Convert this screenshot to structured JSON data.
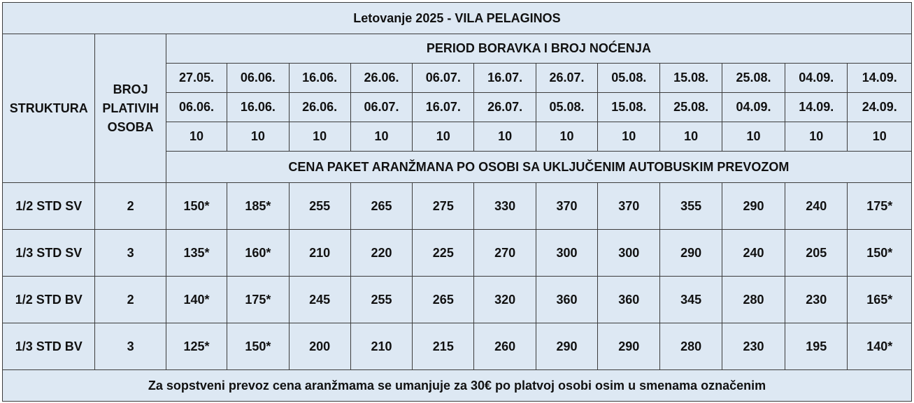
{
  "title": "Letovanje 2025 - VILA PELAGINOS",
  "header": {
    "struktura": "STRUKTURA",
    "broj_lines": [
      "BROJ",
      "PLATIVIH",
      "OSOBA"
    ],
    "period": "PERIOD BORAVKA I BROJ NOĆENJA",
    "cena_label": "CENA PAKET ARANŽMANA PO OSOBI SA UKLJUČENIM AUTOBUSKIM PREVOZOM"
  },
  "periods": [
    {
      "from": "27.05.",
      "to": "06.06.",
      "nights": "10"
    },
    {
      "from": "06.06.",
      "to": "16.06.",
      "nights": "10"
    },
    {
      "from": "16.06.",
      "to": "26.06.",
      "nights": "10"
    },
    {
      "from": "26.06.",
      "to": "06.07.",
      "nights": "10"
    },
    {
      "from": "06.07.",
      "to": "16.07.",
      "nights": "10"
    },
    {
      "from": "16.07.",
      "to": "26.07.",
      "nights": "10"
    },
    {
      "from": "26.07.",
      "to": "05.08.",
      "nights": "10"
    },
    {
      "from": "05.08.",
      "to": "15.08.",
      "nights": "10"
    },
    {
      "from": "15.08.",
      "to": "25.08.",
      "nights": "10"
    },
    {
      "from": "25.08.",
      "to": "04.09.",
      "nights": "10"
    },
    {
      "from": "04.09.",
      "to": "14.09.",
      "nights": "10"
    },
    {
      "from": "14.09.",
      "to": "24.09.",
      "nights": "10"
    }
  ],
  "rows": [
    {
      "structure": "1/2 STD SV",
      "persons": "2",
      "prices": [
        "150*",
        "185*",
        "255",
        "265",
        "275",
        "330",
        "370",
        "370",
        "355",
        "290",
        "240",
        "175*"
      ]
    },
    {
      "structure": "1/3 STD SV",
      "persons": "3",
      "prices": [
        "135*",
        "160*",
        "210",
        "220",
        "225",
        "270",
        "300",
        "300",
        "290",
        "240",
        "205",
        "150*"
      ]
    },
    {
      "structure": "1/2 STD BV",
      "persons": "2",
      "prices": [
        "140*",
        "175*",
        "245",
        "255",
        "265",
        "320",
        "360",
        "360",
        "345",
        "280",
        "230",
        "165*"
      ]
    },
    {
      "structure": "1/3 STD BV",
      "persons": "3",
      "prices": [
        "125*",
        "150*",
        "200",
        "210",
        "215",
        "260",
        "290",
        "290",
        "280",
        "230",
        "195",
        "140*"
      ]
    }
  ],
  "footer": "Za sopstveni prevoz cena aranžmama se umanjuje za 30€ po platvoj osobi osim u smenama označenim",
  "colors": {
    "header_bg": "#dde8f3",
    "price_bg": "#fdf1cc",
    "title_text": "#e01c24",
    "border": "#3c3c3c"
  }
}
